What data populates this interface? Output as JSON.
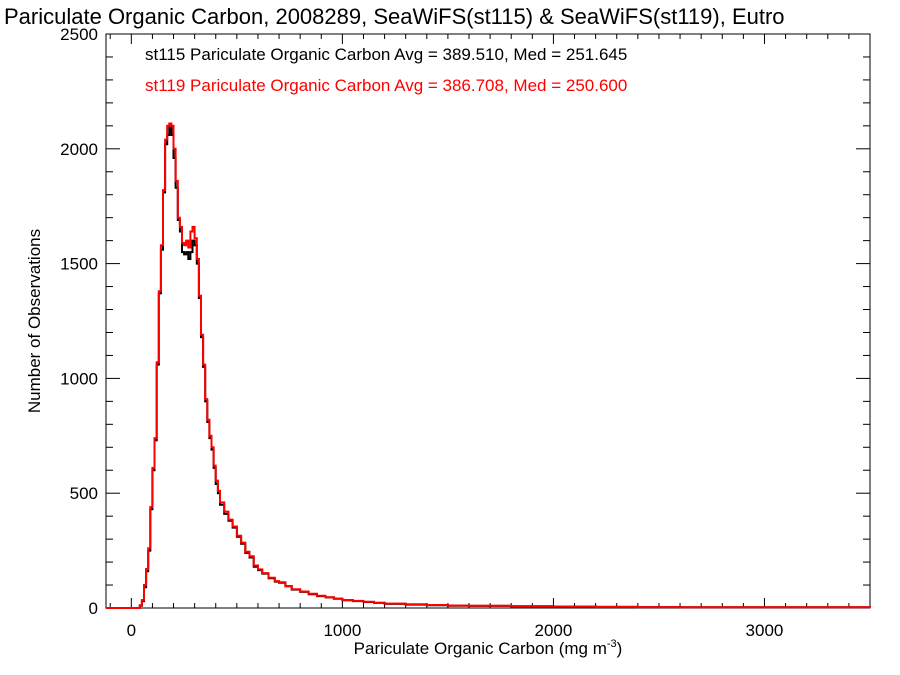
{
  "chart_data": {
    "type": "histogram",
    "title": "Pariculate Organic Carbon, 2008289, SeaWiFS(st115) & SeaWiFS(st119), Eutro",
    "xlabel": "Pariculate Organic Carbon (mg m",
    "xlabel_sup": "-3",
    "xlabel_close": ")",
    "ylabel": "Number of Observations",
    "xlim": [
      -120,
      3500
    ],
    "ylim": [
      0,
      2500
    ],
    "xticks": [
      0,
      1000,
      2000,
      3000
    ],
    "yticks": [
      0,
      500,
      1000,
      1500,
      2000,
      2500
    ],
    "xtick_labels": [
      "0",
      "1000",
      "2000",
      "3000"
    ],
    "ytick_labels": [
      "0",
      "500",
      "1000",
      "1500",
      "2000",
      "2500"
    ],
    "legend": [
      {
        "name": "st115",
        "text": "st115 Pariculate Organic Carbon Avg = 389.510, Med = 251.645",
        "color": "#000000"
      },
      {
        "name": "st119",
        "text": "st119 Pariculate Organic Carbon Avg = 386.708, Med = 250.600",
        "color": "#ff0000"
      }
    ],
    "series": [
      {
        "name": "st115",
        "color": "#000000",
        "points": [
          [
            -120,
            0
          ],
          [
            30,
            0
          ],
          [
            40,
            10
          ],
          [
            50,
            30
          ],
          [
            60,
            90
          ],
          [
            70,
            160
          ],
          [
            80,
            250
          ],
          [
            90,
            430
          ],
          [
            100,
            600
          ],
          [
            110,
            730
          ],
          [
            120,
            1060
          ],
          [
            130,
            1370
          ],
          [
            140,
            1560
          ],
          [
            150,
            1810
          ],
          [
            160,
            2020
          ],
          [
            170,
            2060
          ],
          [
            180,
            2100
          ],
          [
            190,
            2060
          ],
          [
            200,
            1960
          ],
          [
            210,
            1830
          ],
          [
            220,
            1690
          ],
          [
            230,
            1640
          ],
          [
            240,
            1550
          ],
          [
            250,
            1540
          ],
          [
            260,
            1550
          ],
          [
            270,
            1520
          ],
          [
            280,
            1550
          ],
          [
            290,
            1600
          ],
          [
            300,
            1580
          ],
          [
            310,
            1500
          ],
          [
            320,
            1350
          ],
          [
            330,
            1180
          ],
          [
            340,
            1050
          ],
          [
            350,
            900
          ],
          [
            360,
            810
          ],
          [
            370,
            740
          ],
          [
            380,
            690
          ],
          [
            390,
            610
          ],
          [
            400,
            540
          ],
          [
            410,
            500
          ],
          [
            420,
            450
          ],
          [
            440,
            410
          ],
          [
            460,
            380
          ],
          [
            480,
            350
          ],
          [
            500,
            310
          ],
          [
            520,
            280
          ],
          [
            540,
            240
          ],
          [
            560,
            220
          ],
          [
            580,
            180
          ],
          [
            600,
            165
          ],
          [
            620,
            150
          ],
          [
            650,
            130
          ],
          [
            680,
            115
          ],
          [
            700,
            110
          ],
          [
            730,
            95
          ],
          [
            760,
            80
          ],
          [
            800,
            70
          ],
          [
            840,
            60
          ],
          [
            880,
            52
          ],
          [
            920,
            46
          ],
          [
            960,
            40
          ],
          [
            1000,
            34
          ],
          [
            1050,
            30
          ],
          [
            1100,
            26
          ],
          [
            1150,
            22
          ],
          [
            1200,
            18
          ],
          [
            1300,
            15
          ],
          [
            1400,
            12
          ],
          [
            1500,
            10
          ],
          [
            1600,
            9
          ],
          [
            1800,
            8
          ],
          [
            2000,
            6
          ],
          [
            2200,
            5
          ],
          [
            2400,
            4
          ],
          [
            2600,
            3
          ],
          [
            3000,
            3
          ],
          [
            3500,
            2
          ]
        ]
      },
      {
        "name": "st119",
        "color": "#ff0000",
        "points": [
          [
            -120,
            0
          ],
          [
            30,
            0
          ],
          [
            40,
            12
          ],
          [
            50,
            35
          ],
          [
            60,
            100
          ],
          [
            70,
            170
          ],
          [
            80,
            260
          ],
          [
            90,
            440
          ],
          [
            100,
            610
          ],
          [
            110,
            740
          ],
          [
            120,
            1070
          ],
          [
            130,
            1380
          ],
          [
            140,
            1580
          ],
          [
            150,
            1820
          ],
          [
            160,
            2040
          ],
          [
            170,
            2100
          ],
          [
            180,
            2110
          ],
          [
            190,
            2100
          ],
          [
            200,
            2000
          ],
          [
            210,
            1860
          ],
          [
            220,
            1700
          ],
          [
            230,
            1660
          ],
          [
            240,
            1590
          ],
          [
            250,
            1580
          ],
          [
            260,
            1600
          ],
          [
            270,
            1570
          ],
          [
            280,
            1640
          ],
          [
            290,
            1660
          ],
          [
            300,
            1610
          ],
          [
            310,
            1520
          ],
          [
            320,
            1360
          ],
          [
            330,
            1190
          ],
          [
            340,
            1060
          ],
          [
            350,
            910
          ],
          [
            360,
            820
          ],
          [
            370,
            750
          ],
          [
            380,
            700
          ],
          [
            390,
            620
          ],
          [
            400,
            555
          ],
          [
            410,
            510
          ],
          [
            420,
            460
          ],
          [
            440,
            420
          ],
          [
            460,
            385
          ],
          [
            480,
            355
          ],
          [
            500,
            315
          ],
          [
            520,
            285
          ],
          [
            540,
            245
          ],
          [
            560,
            225
          ],
          [
            580,
            185
          ],
          [
            600,
            168
          ],
          [
            620,
            152
          ],
          [
            650,
            132
          ],
          [
            680,
            117
          ],
          [
            700,
            112
          ],
          [
            730,
            96
          ],
          [
            760,
            82
          ],
          [
            800,
            72
          ],
          [
            840,
            62
          ],
          [
            880,
            53
          ],
          [
            920,
            47
          ],
          [
            960,
            41
          ],
          [
            1000,
            35
          ],
          [
            1050,
            31
          ],
          [
            1100,
            27
          ],
          [
            1150,
            23
          ],
          [
            1200,
            19
          ],
          [
            1300,
            16
          ],
          [
            1400,
            13
          ],
          [
            1500,
            11
          ],
          [
            1600,
            10
          ],
          [
            1800,
            8
          ],
          [
            2000,
            6
          ],
          [
            2200,
            5
          ],
          [
            2400,
            4
          ],
          [
            2600,
            3
          ],
          [
            3000,
            3
          ],
          [
            3500,
            2
          ]
        ]
      }
    ]
  }
}
